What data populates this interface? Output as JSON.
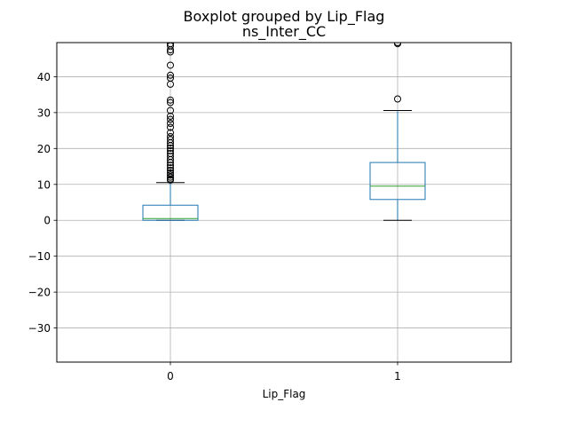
{
  "chart_data": {
    "type": "box",
    "suptitle": "Boxplot grouped by Lip_Flag",
    "title": "ns_Inter_CC",
    "xlabel": "Lip_Flag",
    "ylabel": "",
    "categories": [
      "0",
      "1"
    ],
    "ylim": [
      -39.5,
      49.5
    ],
    "yticks": [
      -30,
      -20,
      -10,
      0,
      10,
      20,
      30,
      40
    ],
    "grid": true,
    "boxes": [
      {
        "category": "0",
        "whisker_low": 0,
        "q1": 0,
        "median": 0.5,
        "q3": 4.2,
        "whisker_high": 10.5,
        "outliers": [
          11.2,
          11.5,
          12.0,
          12.6,
          13.2,
          13.9,
          14.6,
          15.3,
          16.1,
          16.9,
          17.8,
          18.6,
          19.4,
          20.1,
          20.8,
          21.6,
          22.5,
          23.3,
          24.4,
          25.9,
          27.0,
          28.1,
          29.0,
          30.6,
          32.8,
          33.5,
          37.9,
          39.6,
          40.4,
          43.2,
          46.9,
          47.5,
          48.6,
          49.2
        ]
      },
      {
        "category": "1",
        "whisker_low": 0,
        "q1": 5.8,
        "median": 9.5,
        "q3": 16.1,
        "whisker_high": 30.6,
        "outliers": [
          33.8,
          49.2,
          49.5
        ]
      }
    ],
    "colors": {
      "box": "#1f77b4",
      "median": "#2ca02c",
      "whisker_cap": "#000000",
      "outlier": "#000000",
      "grid": "#b0b0b0"
    }
  }
}
